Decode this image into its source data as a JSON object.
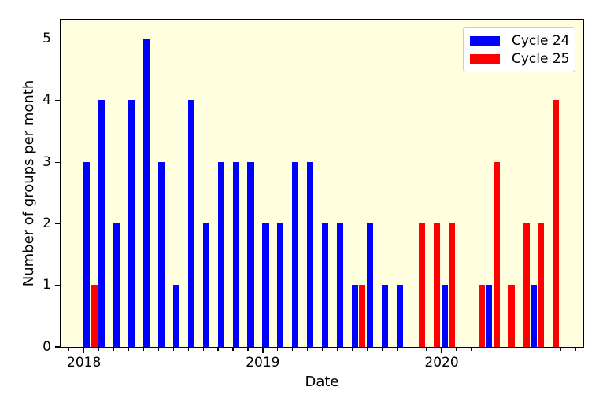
{
  "chart_data": {
    "type": "bar",
    "title": "",
    "xlabel": "Date",
    "ylabel": "Number of groups per month",
    "ylim": [
      0,
      5.3
    ],
    "grid": false,
    "plot_background": "#ffffe0",
    "legend_position": "upper right",
    "x_ticks": [
      {
        "label": "2018",
        "month_index": 0
      },
      {
        "label": "2019",
        "month_index": 12
      },
      {
        "label": "2020",
        "month_index": 24
      }
    ],
    "y_ticks": [
      "0",
      "1",
      "2",
      "3",
      "4",
      "5"
    ],
    "categories": [
      "2018-01",
      "2018-02",
      "2018-03",
      "2018-04",
      "2018-05",
      "2018-06",
      "2018-07",
      "2018-08",
      "2018-09",
      "2018-10",
      "2018-11",
      "2018-12",
      "2019-01",
      "2019-02",
      "2019-03",
      "2019-04",
      "2019-05",
      "2019-06",
      "2019-07",
      "2019-08",
      "2019-09",
      "2019-10",
      "2019-11",
      "2019-12",
      "2020-01",
      "2020-02",
      "2020-03",
      "2020-04",
      "2020-05",
      "2020-06",
      "2020-07",
      "2020-08"
    ],
    "series": [
      {
        "name": "Cycle 24",
        "color": "#0000ff",
        "values": [
          3,
          4,
          2,
          4,
          5,
          3,
          1,
          4,
          2,
          3,
          3,
          3,
          2,
          2,
          3,
          3,
          2,
          2,
          1,
          2,
          1,
          1,
          0,
          0,
          1,
          0,
          0,
          1,
          0,
          0,
          1,
          0
        ]
      },
      {
        "name": "Cycle 25",
        "color": "#ff0000",
        "values": [
          1,
          0,
          0,
          0,
          0,
          0,
          0,
          0,
          0,
          0,
          0,
          0,
          0,
          0,
          0,
          0,
          0,
          0,
          1,
          0,
          0,
          0,
          2,
          2,
          2,
          0,
          1,
          3,
          1,
          2,
          2,
          4
        ]
      }
    ]
  }
}
